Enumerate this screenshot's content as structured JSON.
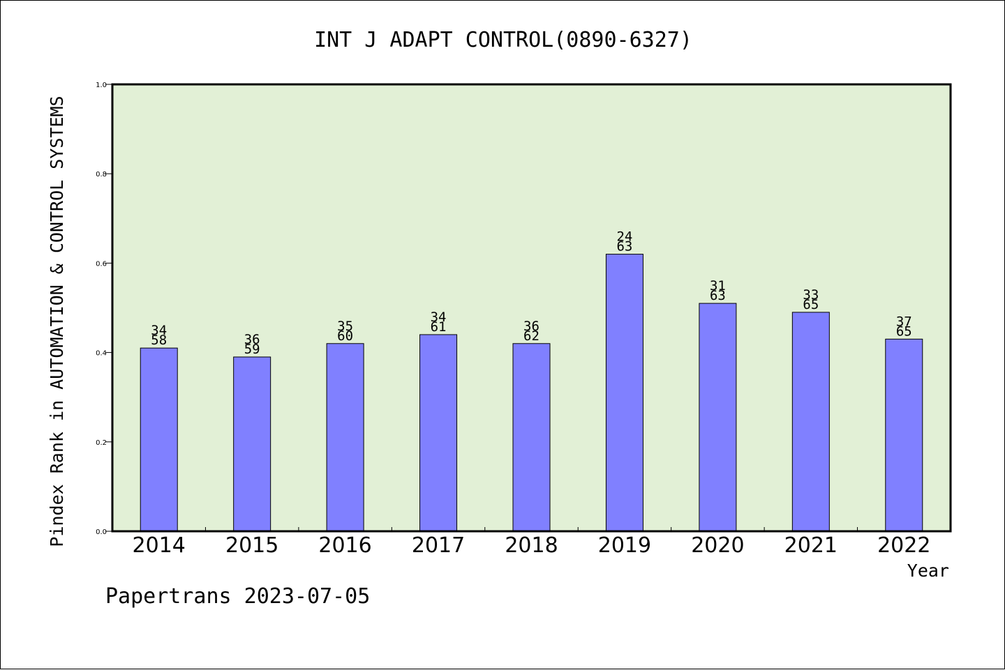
{
  "chart_data": {
    "type": "bar",
    "title": "INT J ADAPT CONTROL(0890-6327)",
    "ylabel": "Pindex Rank in AUTOMATION & CONTROL SYSTEMS",
    "xlabel": "Year",
    "footer": "Papertrans 2023-07-05",
    "ylim": [
      0,
      1.0
    ],
    "yticks": [
      "0.0",
      "0.2",
      "0.4",
      "0.6",
      "0.8",
      "1.0"
    ],
    "categories": [
      "2014",
      "2015",
      "2016",
      "2017",
      "2018",
      "2019",
      "2020",
      "2021",
      "2022"
    ],
    "values": [
      0.41,
      0.39,
      0.42,
      0.44,
      0.42,
      0.62,
      0.51,
      0.49,
      0.43
    ],
    "rank_labels": [
      "34",
      "36",
      "35",
      "34",
      "36",
      "24",
      "31",
      "33",
      "37"
    ],
    "total_labels": [
      "58",
      "59",
      "60",
      "61",
      "62",
      "63",
      "63",
      "65",
      "65"
    ],
    "grid": false,
    "legend": "none",
    "colors": {
      "plot_background": "#e2f0d6",
      "bar_fill": "#8080ff",
      "bar_stroke": "#000000",
      "axis": "#000000"
    }
  }
}
